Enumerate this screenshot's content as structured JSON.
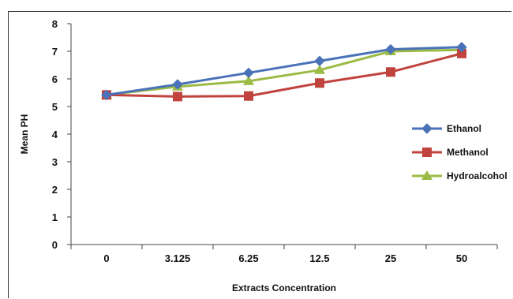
{
  "chart_data": {
    "type": "line",
    "categories": [
      "0",
      "3.125",
      "6.25",
      "12.5",
      "25",
      "50"
    ],
    "series": [
      {
        "name": "Ethanol",
        "values": [
          5.42,
          5.8,
          6.22,
          6.65,
          7.07,
          7.15
        ],
        "color": "#4a72b8",
        "marker": "diamond"
      },
      {
        "name": "Methanol",
        "values": [
          5.42,
          5.36,
          5.38,
          5.85,
          6.25,
          6.92
        ],
        "color": "#c0433e",
        "marker": "square"
      },
      {
        "name": "Hydroalcohol",
        "values": [
          5.42,
          5.72,
          5.92,
          6.32,
          7.0,
          7.05
        ],
        "color": "#9bbb44",
        "marker": "triangle"
      }
    ],
    "title": "",
    "xlabel": "Extracts Concentration",
    "ylabel": "Mean PH",
    "ylim": [
      0,
      8
    ],
    "yticks": [
      "0",
      "1",
      "2",
      "3",
      "4",
      "5",
      "6",
      "7",
      "8"
    ],
    "grid": false,
    "legend": "right"
  }
}
